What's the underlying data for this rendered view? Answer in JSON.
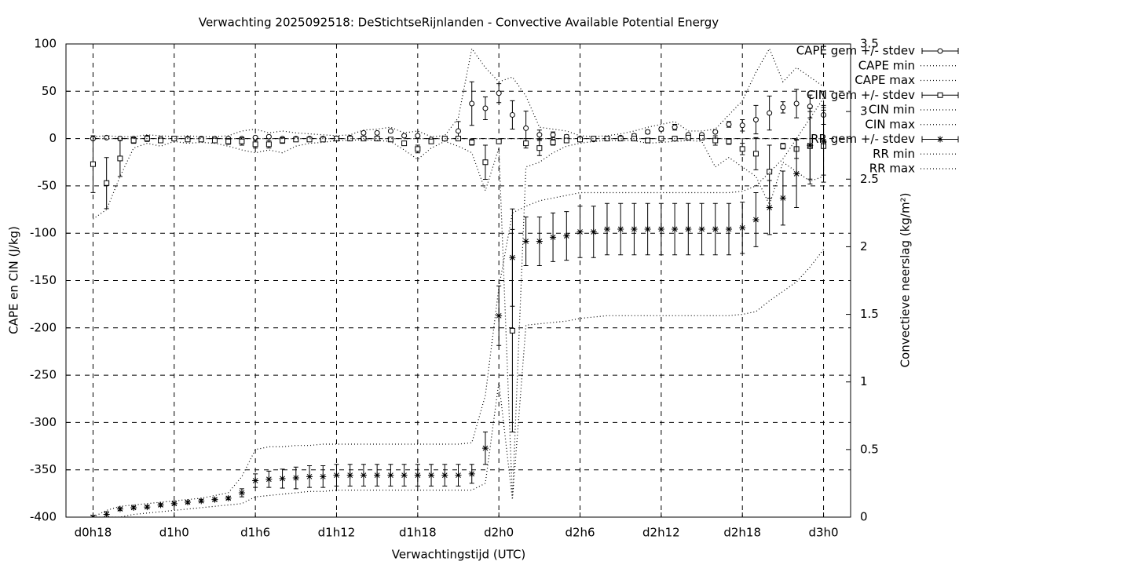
{
  "chart_data": {
    "type": "errorbar",
    "title": "Verwachting 2025092518: DeStichtseRijnlanden - Convective Available Potential Energy",
    "xlabel": "Verwachtingstijd (UTC)",
    "ylabel": "CAPE en CIN (J/kg)",
    "y2label": "Convectieve neerslag (kg/m²)",
    "x": [
      18,
      19,
      20,
      21,
      22,
      23,
      24,
      25,
      26,
      27,
      28,
      29,
      30,
      31,
      32,
      33,
      34,
      35,
      36,
      37,
      38,
      39,
      40,
      41,
      42,
      43,
      44,
      45,
      46,
      47,
      48,
      49,
      50,
      51,
      52,
      53,
      54,
      55,
      56,
      57,
      58,
      59,
      60,
      61,
      62,
      63,
      64,
      65,
      66,
      67,
      68,
      69,
      70,
      71,
      72
    ],
    "xlim": [
      16,
      74
    ],
    "xticks": [
      {
        "value": 18,
        "label": "d0h18"
      },
      {
        "value": 24,
        "label": "d1h0"
      },
      {
        "value": 30,
        "label": "d1h6"
      },
      {
        "value": 36,
        "label": "d1h12"
      },
      {
        "value": 42,
        "label": "d1h18"
      },
      {
        "value": 48,
        "label": "d2h0"
      },
      {
        "value": 54,
        "label": "d2h6"
      },
      {
        "value": 60,
        "label": "d2h12"
      },
      {
        "value": 66,
        "label": "d2h18"
      },
      {
        "value": 72,
        "label": "d3h0"
      }
    ],
    "ylim": [
      -400,
      100
    ],
    "yticks": [
      -400,
      -350,
      -300,
      -250,
      -200,
      -150,
      -100,
      -50,
      0,
      50,
      100
    ],
    "y2lim": [
      0,
      3.5
    ],
    "y2ticks": [
      0,
      0.5,
      1,
      1.5,
      2,
      2.5,
      3,
      3.5
    ],
    "grid": true,
    "series": [
      {
        "name": "CAPE gem +/- stdev",
        "color": "#000000",
        "style": "errorbars",
        "marker": "circle",
        "values": [
          0,
          1,
          0,
          0,
          1,
          0,
          0,
          0,
          0,
          0,
          0,
          0,
          1,
          2,
          0,
          0,
          0,
          0,
          0,
          1,
          6,
          6,
          8,
          3,
          3,
          -1,
          0,
          8,
          37,
          32,
          48,
          25,
          11,
          4,
          4,
          2,
          0,
          -1,
          0,
          1,
          3,
          7,
          10,
          12,
          4,
          4,
          7,
          15,
          14,
          20,
          27,
          33,
          37,
          34,
          25
        ],
        "errors": [
          1,
          1,
          1,
          0,
          1,
          0,
          0,
          0,
          0,
          0,
          0,
          0,
          1,
          1,
          0,
          0,
          0,
          0,
          0,
          0,
          1,
          1,
          1,
          1,
          1,
          0,
          0,
          10,
          23,
          12,
          10,
          15,
          18,
          5,
          3,
          2,
          0,
          0,
          0,
          1,
          2,
          2,
          2,
          3,
          1,
          1,
          1,
          3,
          6,
          15,
          18,
          6,
          15,
          12,
          10
        ]
      },
      {
        "name": "CAPE min",
        "color": "#000000",
        "style": "dots",
        "values": [
          0,
          0,
          0,
          0,
          0,
          0,
          0,
          0,
          0,
          0,
          0,
          0,
          0,
          0,
          0,
          0,
          0,
          0,
          0,
          0,
          0,
          0,
          0,
          0,
          0,
          0,
          0,
          0,
          0,
          0,
          0,
          0,
          0,
          0,
          0,
          0,
          0,
          0,
          0,
          0,
          0,
          0,
          0,
          0,
          0,
          0,
          0,
          0,
          0,
          0,
          0,
          0,
          0,
          0,
          0
        ]
      },
      {
        "name": "CAPE max",
        "color": "#000000",
        "style": "dots",
        "values": [
          2,
          3,
          2,
          2,
          4,
          3,
          2,
          3,
          2,
          2,
          3,
          8,
          10,
          6,
          8,
          6,
          5,
          4,
          3,
          4,
          9,
          10,
          12,
          6,
          8,
          2,
          3,
          22,
          95,
          75,
          60,
          65,
          45,
          12,
          10,
          8,
          3,
          2,
          3,
          5,
          8,
          12,
          15,
          18,
          8,
          8,
          10,
          25,
          40,
          70,
          95,
          60,
          75,
          65,
          55
        ]
      },
      {
        "name": "CIN gem +/- stdev",
        "color": "#000000",
        "style": "errorbars",
        "marker": "square",
        "values": [
          -27,
          -47,
          -21,
          -2,
          0,
          -2,
          0,
          -1,
          -1,
          -2,
          -3,
          -3,
          -6,
          -6,
          -2,
          -1,
          -1,
          -1,
          0,
          0,
          0,
          0,
          -1,
          -5,
          -11,
          -3,
          0,
          0,
          -4,
          -25,
          -3,
          -203,
          -5,
          -10,
          -4,
          -2,
          -1,
          0,
          0,
          0,
          0,
          -2,
          0,
          0,
          1,
          1,
          -2,
          -3,
          -11,
          -16,
          -35,
          -8,
          -11,
          -8,
          -8
        ],
        "errors": [
          30,
          27,
          19,
          3,
          3,
          2,
          2,
          1,
          1,
          1,
          3,
          4,
          4,
          4,
          3,
          1,
          1,
          1,
          1,
          1,
          1,
          1,
          1,
          2,
          4,
          2,
          1,
          1,
          3,
          18,
          2,
          107,
          5,
          8,
          3,
          2,
          1,
          1,
          1,
          1,
          1,
          2,
          1,
          1,
          1,
          1,
          5,
          3,
          6,
          17,
          28,
          3,
          10,
          40,
          38
        ]
      },
      {
        "name": "CIN min",
        "color": "#000000",
        "style": "dots",
        "values": [
          -85,
          -75,
          -40,
          -10,
          -5,
          -8,
          -3,
          -5,
          -4,
          -5,
          -8,
          -12,
          -15,
          -12,
          -15,
          -8,
          -5,
          -4,
          -2,
          -2,
          -1,
          -2,
          -3,
          -12,
          -22,
          -10,
          -3,
          -8,
          -15,
          -55,
          -10,
          -380,
          -30,
          -25,
          -15,
          -8,
          -5,
          -3,
          -2,
          -2,
          -2,
          -5,
          -4,
          -3,
          -2,
          -3,
          -30,
          -20,
          -30,
          -40,
          -70,
          -25,
          -35,
          -45,
          -40
        ]
      },
      {
        "name": "CIN max",
        "color": "#000000",
        "style": "dots",
        "values": [
          0,
          0,
          0,
          0,
          0,
          0,
          0,
          0,
          0,
          0,
          0,
          0,
          0,
          0,
          0,
          0,
          0,
          0,
          0,
          0,
          0,
          0,
          0,
          0,
          0,
          0,
          0,
          0,
          0,
          0,
          0,
          0,
          0,
          0,
          0,
          0,
          0,
          0,
          0,
          0,
          0,
          0,
          0,
          0,
          0,
          0,
          0,
          0,
          0,
          0,
          0,
          0,
          0,
          0,
          0
        ]
      },
      {
        "name": "RR gem +/- stdev",
        "color": "#000000",
        "style": "errorbars",
        "marker": "star",
        "axis": "y2",
        "values": [
          0,
          0.02,
          0.06,
          0.07,
          0.075,
          0.09,
          0.1,
          0.11,
          0.12,
          0.13,
          0.14,
          0.18,
          0.27,
          0.28,
          0.285,
          0.29,
          0.3,
          0.3,
          0.31,
          0.31,
          0.31,
          0.31,
          0.31,
          0.31,
          0.31,
          0.31,
          0.31,
          0.31,
          0.32,
          0.51,
          1.49,
          1.92,
          2.04,
          2.04,
          2.07,
          2.08,
          2.11,
          2.11,
          2.13,
          2.13,
          2.13,
          2.13,
          2.13,
          2.13,
          2.13,
          2.13,
          2.13,
          2.13,
          2.14,
          2.2,
          2.29,
          2.36,
          2.54,
          2.75,
          2.78
        ],
        "errors": [
          0.01,
          0.02,
          0.01,
          0.01,
          0.01,
          0.01,
          0.01,
          0.01,
          0.01,
          0.01,
          0.01,
          0.03,
          0.05,
          0.06,
          0.07,
          0.08,
          0.08,
          0.08,
          0.08,
          0.08,
          0.08,
          0.08,
          0.08,
          0.08,
          0.08,
          0.08,
          0.08,
          0.08,
          0.07,
          0.12,
          0.22,
          0.36,
          0.18,
          0.18,
          0.18,
          0.18,
          0.19,
          0.19,
          0.19,
          0.19,
          0.19,
          0.19,
          0.19,
          0.19,
          0.19,
          0.19,
          0.19,
          0.19,
          0.19,
          0.2,
          0.2,
          0.2,
          0.25,
          0.25,
          0.25
        ]
      },
      {
        "name": "RR min",
        "color": "#000000",
        "style": "dots",
        "axis": "y2",
        "values": [
          0,
          0,
          0,
          0.02,
          0.03,
          0.04,
          0.05,
          0.06,
          0.07,
          0.08,
          0.09,
          0.1,
          0.15,
          0.16,
          0.17,
          0.18,
          0.19,
          0.19,
          0.2,
          0.2,
          0.2,
          0.2,
          0.2,
          0.2,
          0.2,
          0.2,
          0.2,
          0.2,
          0.2,
          0.25,
          1.0,
          0.13,
          1.42,
          1.43,
          1.44,
          1.45,
          1.47,
          1.48,
          1.49,
          1.49,
          1.49,
          1.49,
          1.49,
          1.49,
          1.49,
          1.49,
          1.49,
          1.49,
          1.5,
          1.52,
          1.6,
          1.67,
          1.74,
          1.85,
          1.98
        ]
      },
      {
        "name": "RR max",
        "color": "#000000",
        "style": "dots",
        "axis": "y2",
        "values": [
          0,
          0.05,
          0.08,
          0.09,
          0.1,
          0.11,
          0.12,
          0.13,
          0.14,
          0.16,
          0.18,
          0.3,
          0.5,
          0.52,
          0.52,
          0.53,
          0.53,
          0.54,
          0.54,
          0.54,
          0.54,
          0.54,
          0.54,
          0.54,
          0.54,
          0.54,
          0.54,
          0.54,
          0.55,
          0.9,
          1.7,
          2.25,
          2.3,
          2.34,
          2.36,
          2.38,
          2.4,
          2.4,
          2.4,
          2.4,
          2.4,
          2.4,
          2.4,
          2.4,
          2.4,
          2.4,
          2.4,
          2.4,
          2.41,
          2.45,
          2.55,
          2.65,
          2.8,
          2.95,
          3.1
        ]
      }
    ]
  }
}
